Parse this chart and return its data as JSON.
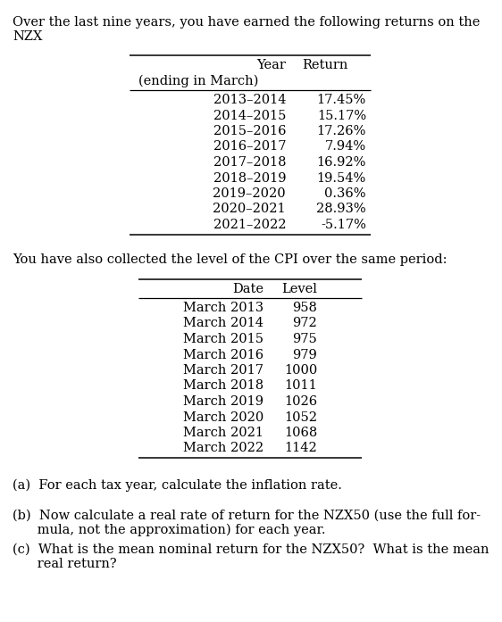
{
  "intro_line1": "Over the last nine years, you have earned the following returns on the",
  "intro_line2": "NZX",
  "table1_headers": [
    "Year",
    "Return"
  ],
  "table1_subheader": "(ending in March)",
  "table1_rows": [
    [
      "2013–2014",
      "17.45%"
    ],
    [
      "2014–2015",
      "15.17%"
    ],
    [
      "2015–2016",
      "17.26%"
    ],
    [
      "2016–2017",
      "7.94%"
    ],
    [
      "2017–2018",
      "16.92%"
    ],
    [
      "2018–2019",
      "19.54%"
    ],
    [
      "2019–2020",
      "0.36%"
    ],
    [
      "2020–2021",
      "28.93%"
    ],
    [
      "2021–2022",
      "-5.17%"
    ]
  ],
  "middle_text": "You have also collected the level of the CPI over the same period:",
  "table2_headers": [
    "Date",
    "Level"
  ],
  "table2_rows": [
    [
      "March 2013",
      "958"
    ],
    [
      "March 2014",
      "972"
    ],
    [
      "March 2015",
      "975"
    ],
    [
      "March 2016",
      "979"
    ],
    [
      "March 2017",
      "1000"
    ],
    [
      "March 2018",
      "1011"
    ],
    [
      "March 2019",
      "1026"
    ],
    [
      "March 2020",
      "1052"
    ],
    [
      "March 2021",
      "1068"
    ],
    [
      "March 2022",
      "1142"
    ]
  ],
  "q_a": "(a)  For each tax year, calculate the inflation rate.",
  "q_b1": "(b)  Now calculate a real rate of return for the NZX50 (use the full for-",
  "q_b2": "      mula, not the approximation) for each year.",
  "q_c1": "(c)  What is the mean nominal return for the NZX50?  What is the mean",
  "q_c2": "      real return?",
  "font_family": "serif",
  "font_size": 10.5,
  "bg_color": "#ffffff",
  "text_color": "#000000"
}
